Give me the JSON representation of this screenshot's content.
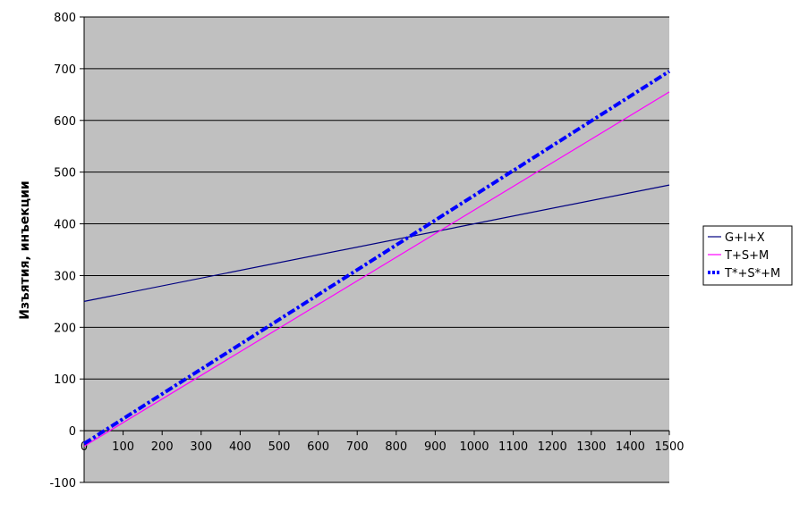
{
  "chart_data": {
    "type": "line",
    "title": "",
    "xlabel": "",
    "ylabel": "Изъятия, инъекции",
    "xlim": [
      0,
      1500
    ],
    "ylim": [
      -100,
      800
    ],
    "x_ticks": [
      "0",
      "100",
      "200",
      "300",
      "400",
      "500",
      "600",
      "700",
      "800",
      "900",
      "1000",
      "1100",
      "1200",
      "1300",
      "1400",
      "1500"
    ],
    "y_ticks": [
      "-100",
      "0",
      "100",
      "200",
      "300",
      "400",
      "500",
      "600",
      "700",
      "800"
    ],
    "grid": true,
    "legend_position": "right",
    "plot_background": "#c0c0c0",
    "series": [
      {
        "name": "G+I+X",
        "color": "#000080",
        "style": "solid",
        "x": [
          0,
          1500
        ],
        "y": [
          250,
          475
        ]
      },
      {
        "name": "T+S+M",
        "color": "#ff00ff",
        "style": "solid",
        "x": [
          0,
          1500
        ],
        "y": [
          -30,
          655
        ]
      },
      {
        "name": "T*+S*+M",
        "color": "#0000ff",
        "style": "dashdot",
        "x": [
          0,
          1500
        ],
        "y": [
          -25,
          695
        ]
      }
    ]
  }
}
